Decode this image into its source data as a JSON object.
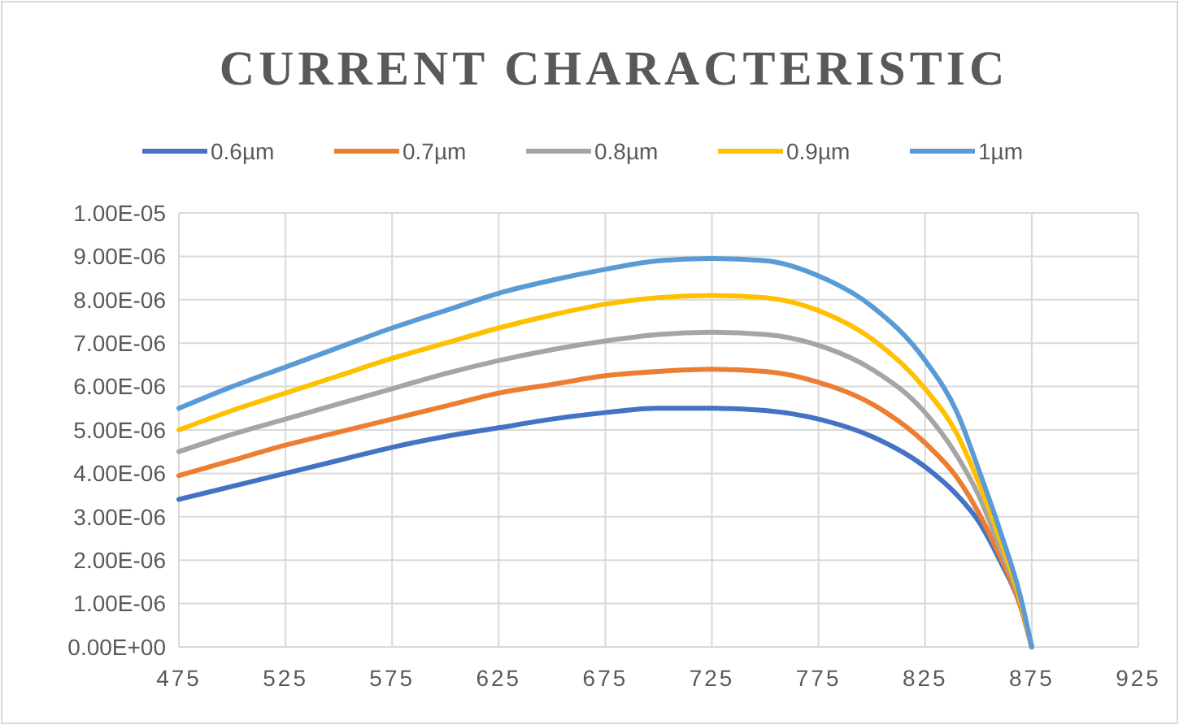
{
  "chart_data": {
    "type": "line",
    "title": "CURRENT CHARACTERISTIC",
    "x": [
      475,
      500,
      525,
      550,
      575,
      600,
      625,
      650,
      675,
      700,
      725,
      750,
      775,
      800,
      825,
      840,
      850,
      860,
      870,
      875
    ],
    "series": [
      {
        "name": "0.6µm",
        "color": "#4472c4",
        "values": [
          3.4e-06,
          3.7e-06,
          4e-06,
          4.3e-06,
          4.6e-06,
          4.85e-06,
          5.05e-06,
          5.25e-06,
          5.4e-06,
          5.5e-06,
          5.5e-06,
          5.45e-06,
          5.25e-06,
          4.85e-06,
          4.15e-06,
          3.5e-06,
          2.9e-06,
          2e-06,
          9e-07,
          0
        ]
      },
      {
        "name": "0.7µm",
        "color": "#ed7d31",
        "values": [
          3.95e-06,
          4.3e-06,
          4.65e-06,
          4.95e-06,
          5.25e-06,
          5.55e-06,
          5.85e-06,
          6.05e-06,
          6.25e-06,
          6.35e-06,
          6.4e-06,
          6.35e-06,
          6.1e-06,
          5.6e-06,
          4.7e-06,
          3.9e-06,
          3.1e-06,
          2.1e-06,
          9e-07,
          0
        ]
      },
      {
        "name": "0.8µm",
        "color": "#a5a5a5",
        "values": [
          4.5e-06,
          4.9e-06,
          5.25e-06,
          5.6e-06,
          5.95e-06,
          6.3e-06,
          6.6e-06,
          6.85e-06,
          7.05e-06,
          7.2e-06,
          7.25e-06,
          7.2e-06,
          6.95e-06,
          6.4e-06,
          5.4e-06,
          4.4e-06,
          3.5e-06,
          2.3e-06,
          1e-06,
          0
        ]
      },
      {
        "name": "0.9µm",
        "color": "#ffc000",
        "values": [
          5e-06,
          5.45e-06,
          5.85e-06,
          6.25e-06,
          6.65e-06,
          7e-06,
          7.35e-06,
          7.65e-06,
          7.9e-06,
          8.05e-06,
          8.1e-06,
          8.05e-06,
          7.75e-06,
          7.1e-06,
          5.95e-06,
          4.9e-06,
          3.8e-06,
          2.5e-06,
          1e-06,
          0
        ]
      },
      {
        "name": "1µm",
        "color": "#5b9bd5",
        "values": [
          5.5e-06,
          6e-06,
          6.45e-06,
          6.9e-06,
          7.35e-06,
          7.75e-06,
          8.15e-06,
          8.45e-06,
          8.7e-06,
          8.9e-06,
          8.95e-06,
          8.9e-06,
          8.55e-06,
          7.85e-06,
          6.6e-06,
          5.4e-06,
          4.1e-06,
          2.7e-06,
          1.1e-06,
          0
        ]
      }
    ],
    "xlim": [
      475,
      925
    ],
    "xticks": [
      475,
      525,
      575,
      625,
      675,
      725,
      775,
      825,
      875,
      925
    ],
    "ylim": [
      0,
      1e-05
    ],
    "yticks": [
      {
        "value": 0,
        "label": "0.00E+00"
      },
      {
        "value": 1e-06,
        "label": "1.00E-06"
      },
      {
        "value": 2e-06,
        "label": "2.00E-06"
      },
      {
        "value": 3e-06,
        "label": "3.00E-06"
      },
      {
        "value": 4e-06,
        "label": "4.00E-06"
      },
      {
        "value": 5e-06,
        "label": "5.00E-06"
      },
      {
        "value": 6e-06,
        "label": "6.00E-06"
      },
      {
        "value": 7e-06,
        "label": "7.00E-06"
      },
      {
        "value": 8e-06,
        "label": "8.00E-06"
      },
      {
        "value": 9e-06,
        "label": "9.00E-06"
      },
      {
        "value": 1e-05,
        "label": "1.00E-05"
      }
    ],
    "grid": true,
    "legend": "top",
    "marker": "none",
    "line_style": "solid"
  }
}
